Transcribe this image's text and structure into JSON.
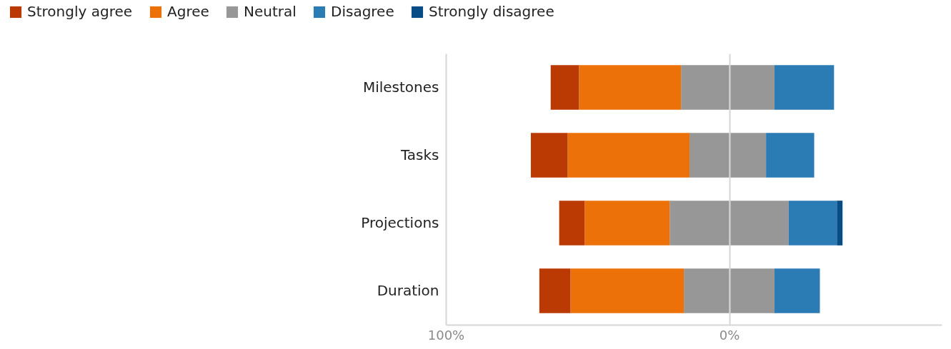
{
  "chart_data": {
    "type": "bar",
    "orientation": "horizontal",
    "stacked": true,
    "categories": [
      "Milestones",
      "Tasks",
      "Projections",
      "Duration"
    ],
    "series": [
      {
        "name": "Neutral",
        "color": "#979797",
        "values": [
          -17,
          -14,
          -21,
          -16
        ]
      },
      {
        "color": "#979797",
        "values": [
          16,
          13,
          21,
          16
        ]
      },
      {
        "name": "Agree",
        "color": "#ec7108",
        "values": [
          -36,
          -43,
          -30,
          -40
        ]
      },
      {
        "name": "Disagree",
        "color": "#2b7bb4",
        "values": [
          21,
          17,
          17,
          16
        ]
      },
      {
        "name": "Strongly agree",
        "color": "#bb3a03",
        "values": [
          -10,
          -13,
          -9,
          -11
        ]
      },
      {
        "name": "Strongly disagree",
        "color": "#084c86",
        "values": [
          0,
          0,
          2,
          0
        ]
      }
    ],
    "xlim": [
      -100,
      75
    ],
    "xticks": [
      {
        "value": -100,
        "label": "100%"
      },
      {
        "value": 0,
        "label": "0%"
      }
    ],
    "grid": "x",
    "legend": "top left"
  }
}
